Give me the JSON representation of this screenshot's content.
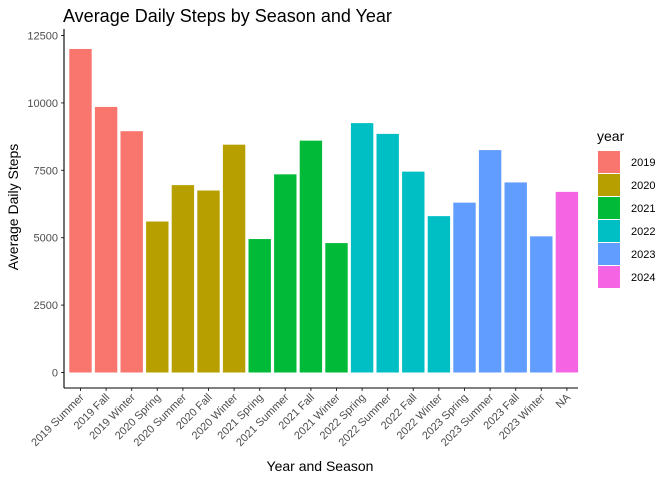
{
  "chart_data": {
    "type": "bar",
    "title": "Average Daily Steps by Season and Year",
    "xlabel": "Year and Season",
    "ylabel": "Average Daily Steps",
    "ylim": [
      0,
      12500
    ],
    "yticks": [
      0,
      2500,
      5000,
      7500,
      10000,
      12500
    ],
    "grid": false,
    "legend": {
      "title": "year",
      "position": "right",
      "entries": [
        {
          "label": "2019",
          "color": "#F8766D"
        },
        {
          "label": "2020",
          "color": "#B79F00"
        },
        {
          "label": "2021",
          "color": "#00BA38"
        },
        {
          "label": "2022",
          "color": "#00BFC4"
        },
        {
          "label": "2023",
          "color": "#619CFF"
        },
        {
          "label": "2024",
          "color": "#F564E3"
        }
      ]
    },
    "bars": [
      {
        "category": "2019 Summer",
        "value": 12000,
        "year": "2019"
      },
      {
        "category": "2019 Fall",
        "value": 9850,
        "year": "2019"
      },
      {
        "category": "2019 Winter",
        "value": 8950,
        "year": "2019"
      },
      {
        "category": "2020 Spring",
        "value": 5600,
        "year": "2020"
      },
      {
        "category": "2020 Summer",
        "value": 6950,
        "year": "2020"
      },
      {
        "category": "2020 Fall",
        "value": 6750,
        "year": "2020"
      },
      {
        "category": "2020 Winter",
        "value": 8450,
        "year": "2020"
      },
      {
        "category": "2021 Spring",
        "value": 4950,
        "year": "2021"
      },
      {
        "category": "2021 Summer",
        "value": 7350,
        "year": "2021"
      },
      {
        "category": "2021 Fall",
        "value": 8600,
        "year": "2021"
      },
      {
        "category": "2021 Winter",
        "value": 4800,
        "year": "2021"
      },
      {
        "category": "2022 Spring",
        "value": 9250,
        "year": "2022"
      },
      {
        "category": "2022 Summer",
        "value": 8850,
        "year": "2022"
      },
      {
        "category": "2022 Fall",
        "value": 7450,
        "year": "2022"
      },
      {
        "category": "2022 Winter",
        "value": 5800,
        "year": "2022"
      },
      {
        "category": "2023 Spring",
        "value": 6300,
        "year": "2023"
      },
      {
        "category": "2023 Summer",
        "value": 8250,
        "year": "2023"
      },
      {
        "category": "2023 Fall",
        "value": 7050,
        "year": "2023"
      },
      {
        "category": "2023 Winter",
        "value": 5050,
        "year": "2023"
      },
      {
        "category": "NA",
        "value": 6700,
        "year": "2024"
      }
    ]
  }
}
